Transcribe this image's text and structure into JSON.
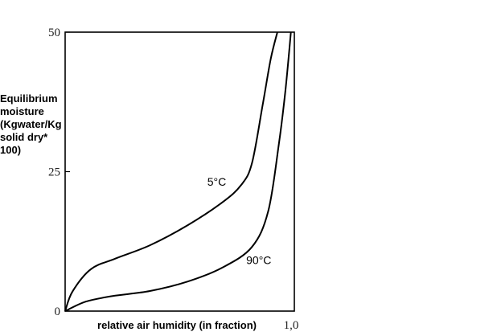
{
  "chart_data": {
    "type": "line",
    "xlabel": "relative air humidity (in fraction)",
    "ylabel_lines": [
      "Equilibrium",
      "moisture",
      "(Kgwater/Kg",
      "solid dry*",
      "100)"
    ],
    "xlim": [
      0,
      1.0
    ],
    "ylim": [
      0,
      50
    ],
    "x_tick_labels": [
      {
        "value": 1.0,
        "label": "1,0"
      }
    ],
    "y_tick_labels": [
      {
        "value": 0,
        "label": "0"
      },
      {
        "value": 25,
        "label": "25"
      },
      {
        "value": 50,
        "label": "50"
      }
    ],
    "grid": false,
    "line_color": "#000000",
    "series": [
      {
        "name": "5°C",
        "label_at": [
          0.62,
          22.5
        ],
        "x": [
          0,
          0.032,
          0.112,
          0.218,
          0.37,
          0.535,
          0.686,
          0.768,
          0.815,
          0.862,
          0.897,
          0.926
        ],
        "y": [
          0,
          3.5,
          7.5,
          9.4,
          11.8,
          15.4,
          19.5,
          22.6,
          26.5,
          37,
          45.2,
          50
        ]
      },
      {
        "name": "90°C",
        "label_at": [
          0.79,
          8.4
        ],
        "x": [
          0,
          0.09,
          0.207,
          0.37,
          0.535,
          0.686,
          0.815,
          0.886,
          0.932,
          0.961,
          0.985
        ],
        "y": [
          0,
          1.7,
          2.7,
          3.6,
          5.3,
          7.8,
          11.5,
          17.9,
          29.8,
          39.5,
          50
        ]
      }
    ]
  }
}
